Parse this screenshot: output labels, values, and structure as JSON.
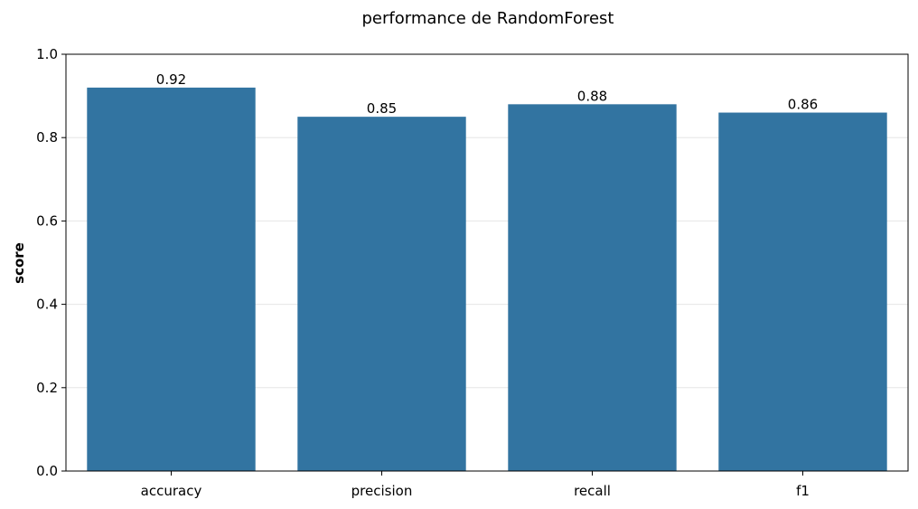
{
  "chart_data": {
    "type": "bar",
    "title": "performance de RandomForest",
    "xlabel": "",
    "ylabel": "score",
    "categories": [
      "accuracy",
      "precision",
      "recall",
      "f1"
    ],
    "values": [
      0.92,
      0.85,
      0.88,
      0.86
    ],
    "data_labels": [
      "0.92",
      "0.85",
      "0.88",
      "0.86"
    ],
    "ylim": [
      0,
      1.0
    ],
    "y_ticks": [
      0.0,
      0.2,
      0.4,
      0.6,
      0.8,
      1.0
    ],
    "y_tick_labels": [
      "0.0",
      "0.2",
      "0.4",
      "0.6",
      "0.8",
      "1.0"
    ],
    "grid": "y",
    "legend": "none",
    "bar_color": "#3274a1",
    "grid_color": "#e6e6e6"
  }
}
